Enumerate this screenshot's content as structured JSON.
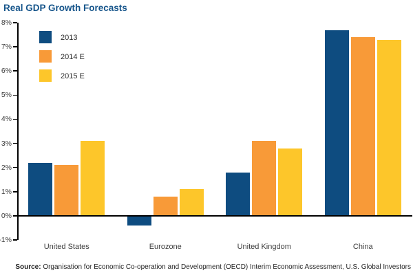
{
  "title": "Real GDP Growth Forecasts",
  "colors": {
    "title": "#15548a",
    "axis": "#000000",
    "tick_label": "#3d3d3d",
    "series_2013": "#0e4c80",
    "series_2014e": "#f89a38",
    "series_2015e": "#fdc62a"
  },
  "chart_data": {
    "type": "bar",
    "title": "Real GDP Growth Forecasts",
    "categories": [
      "United States",
      "Eurozone",
      "United Kingdom",
      "China"
    ],
    "series": [
      {
        "name": "2013",
        "color": "#0e4c80",
        "values": [
          2.2,
          -0.4,
          1.8,
          7.7
        ]
      },
      {
        "name": "2014 E",
        "color": "#f89a38",
        "values": [
          2.1,
          0.8,
          3.1,
          7.4
        ]
      },
      {
        "name": "2015 E",
        "color": "#fdc62a",
        "values": [
          3.1,
          1.1,
          2.8,
          7.3
        ]
      }
    ],
    "ylabel": "",
    "xlabel": "",
    "ylim": [
      -1,
      8
    ],
    "ytick_step": 1,
    "ytick_labels": [
      "8%",
      "7%",
      "6%",
      "5%",
      "4%",
      "3%",
      "2%",
      "1%",
      "0%",
      "-1%"
    ],
    "grid": false,
    "zero_line": true,
    "legend_position": "top-left"
  },
  "source": {
    "label": "Source:",
    "text": " Organisation for Economic Co-operation and Development (OECD) Interim Economic Assessment, U.S. Global Investors"
  }
}
